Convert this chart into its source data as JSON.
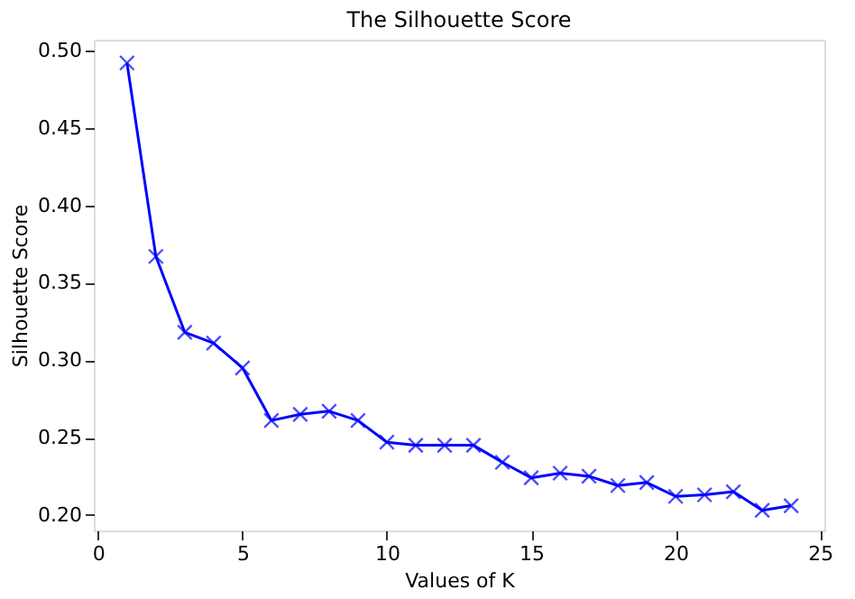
{
  "chart_data": {
    "type": "line",
    "title": "The Silhouette Score",
    "xlabel": "Values of K",
    "ylabel": "Silhouette Score",
    "x": [
      1,
      2,
      3,
      4,
      5,
      6,
      7,
      8,
      9,
      10,
      11,
      12,
      13,
      14,
      15,
      16,
      17,
      18,
      19,
      20,
      21,
      22,
      23,
      24
    ],
    "series": [
      {
        "color": "#0000ff",
        "values": [
          0.492,
          0.367,
          0.318,
          0.311,
          0.295,
          0.261,
          0.265,
          0.267,
          0.261,
          0.247,
          0.245,
          0.245,
          0.245,
          0.234,
          0.224,
          0.227,
          0.225,
          0.219,
          0.221,
          0.212,
          0.213,
          0.215,
          0.203,
          0.206
        ]
      }
    ],
    "xlim": [
      -0.15,
      25.15
    ],
    "ylim": [
      0.19,
      0.507
    ],
    "xticks": [
      0,
      5,
      10,
      15,
      20,
      25
    ],
    "yticks": [
      {
        "value": 0.2,
        "label": "0.20"
      },
      {
        "value": 0.25,
        "label": "0.25"
      },
      {
        "value": 0.3,
        "label": "0.30"
      },
      {
        "value": 0.35,
        "label": "0.35"
      },
      {
        "value": 0.4,
        "label": "0.40"
      },
      {
        "value": 0.45,
        "label": "0.45"
      },
      {
        "value": 0.5,
        "label": "0.50"
      }
    ],
    "marker": "cross",
    "line_style": "solid",
    "grid": false
  }
}
